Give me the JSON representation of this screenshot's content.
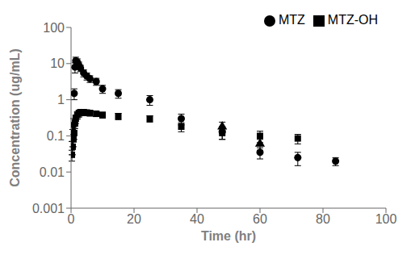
{
  "chart_data": {
    "type": "scatter",
    "xlabel": "Time (hr)",
    "ylabel": "Concentration (ug/mL)",
    "xlim": [
      0,
      100
    ],
    "ylim": [
      0.001,
      100
    ],
    "xticks": [
      0,
      20,
      40,
      60,
      80,
      100
    ],
    "yticks": [
      0.001,
      0.01,
      0.1,
      1,
      10,
      100
    ],
    "log": "y",
    "grid": false,
    "legend": "upper right",
    "series": [
      {
        "name": "MTZ",
        "color": "#000000",
        "marker": "circle",
        "x": [
          0.25,
          0.5,
          0.75,
          1.0,
          1.25,
          1.5,
          2.0,
          2.5,
          3.0,
          4.0,
          5.0,
          6.0,
          8.0,
          10.0,
          15.0,
          25.0,
          35.0,
          48.0,
          60.0,
          72.0,
          84.0
        ],
        "values": [
          0.05,
          0.1,
          0.2,
          1.5,
          8.0,
          12.0,
          11.0,
          9.0,
          7.5,
          5.5,
          4.5,
          3.8,
          3.2,
          2.0,
          1.5,
          1.0,
          0.3,
          0.13,
          0.035,
          0.025,
          0.02
        ],
        "yerr_lo": [
          0.02,
          0.05,
          0.1,
          0.5,
          2.5,
          3.0,
          2.5,
          2.0,
          1.5,
          1.2,
          1.0,
          0.8,
          0.7,
          0.5,
          0.4,
          0.3,
          0.1,
          0.05,
          0.012,
          0.01,
          0.005
        ],
        "yerr_hi": [
          0.02,
          0.05,
          0.1,
          0.5,
          2.5,
          3.0,
          2.5,
          2.0,
          1.5,
          1.2,
          1.0,
          0.8,
          0.7,
          0.5,
          0.4,
          0.3,
          0.1,
          0.05,
          0.012,
          0.01,
          0.005
        ]
      },
      {
        "name": "MTZ-OH",
        "color": "#000000",
        "marker": "square",
        "x": [
          0.25,
          0.5,
          0.75,
          1.0,
          1.25,
          1.5,
          2.0,
          2.5,
          3.0,
          4.0,
          5.0,
          6.0,
          8.0,
          10.0,
          15.0,
          25.0,
          35.0,
          48.0,
          60.0,
          72.0
        ],
        "values": [
          0.03,
          0.05,
          0.08,
          0.12,
          0.22,
          0.3,
          0.38,
          0.42,
          0.45,
          0.45,
          0.44,
          0.43,
          0.41,
          0.38,
          0.35,
          0.3,
          0.18,
          0.12,
          0.1,
          0.085
        ],
        "yerr_lo": [
          0.01,
          0.02,
          0.03,
          0.04,
          0.06,
          0.08,
          0.09,
          0.09,
          0.09,
          0.09,
          0.08,
          0.08,
          0.07,
          0.07,
          0.07,
          0.06,
          0.05,
          0.04,
          0.035,
          0.025
        ],
        "yerr_hi": [
          0.01,
          0.02,
          0.03,
          0.04,
          0.06,
          0.08,
          0.09,
          0.09,
          0.09,
          0.09,
          0.08,
          0.08,
          0.07,
          0.07,
          0.07,
          0.06,
          0.05,
          0.04,
          0.035,
          0.025
        ]
      },
      {
        "color": "#000000",
        "marker": "triangle",
        "x": [
          48.0,
          60.0
        ],
        "values": [
          0.18,
          0.06
        ],
        "yerr_lo": [
          0.06,
          0.02
        ],
        "yerr_hi": [
          0.06,
          0.02
        ]
      }
    ]
  }
}
